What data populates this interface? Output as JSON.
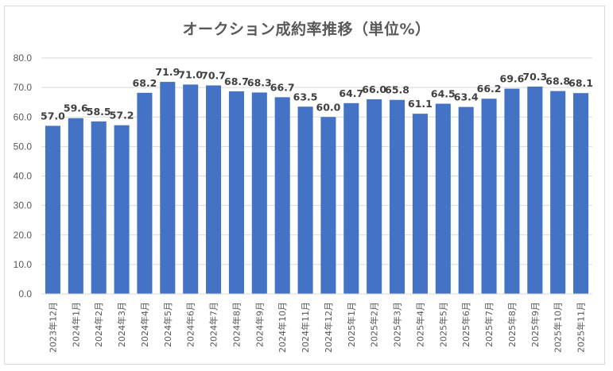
{
  "chart_data": {
    "type": "bar",
    "title": "オークション成約率推移（単位%）",
    "xlabel": "",
    "ylabel": "",
    "ylim": [
      0,
      80
    ],
    "yticks": [
      "0.0",
      "10.0",
      "20.0",
      "30.0",
      "40.0",
      "50.0",
      "60.0",
      "70.0",
      "80.0"
    ],
    "grid": true,
    "legend": "none",
    "bar_color": "#4472c4",
    "categories": [
      "2023年12月",
      "2024年1月",
      "2024年2月",
      "2024年3月",
      "2024年4月",
      "2024年5月",
      "2024年6月",
      "2024年7月",
      "2024年8月",
      "2024年9月",
      "2024年10月",
      "2024年11月",
      "2024年12月",
      "2025年1月",
      "2025年2月",
      "2025年3月",
      "2025年4月",
      "2025年5月",
      "2025年6月",
      "2025年7月",
      "2025年8月",
      "2025年9月",
      "2025年10月",
      "2025年11月"
    ],
    "values": [
      57.0,
      59.6,
      58.5,
      57.2,
      68.2,
      71.9,
      71.0,
      70.7,
      68.7,
      68.3,
      66.7,
      63.5,
      60.0,
      64.7,
      66.0,
      65.8,
      61.1,
      64.5,
      63.4,
      66.2,
      69.6,
      70.3,
      68.8,
      68.1
    ],
    "data_labels": [
      "57.0",
      "59.6",
      "58.5",
      "57.2",
      "68.2",
      "71.9",
      "71.0",
      "70.7",
      "68.7",
      "68.3",
      "66.7",
      "63.5",
      "60.0",
      "64.7",
      "66.0",
      "65.8",
      "61.1",
      "64.5",
      "63.4",
      "66.2",
      "69.6",
      "70.3",
      "68.8",
      "68.1"
    ]
  }
}
